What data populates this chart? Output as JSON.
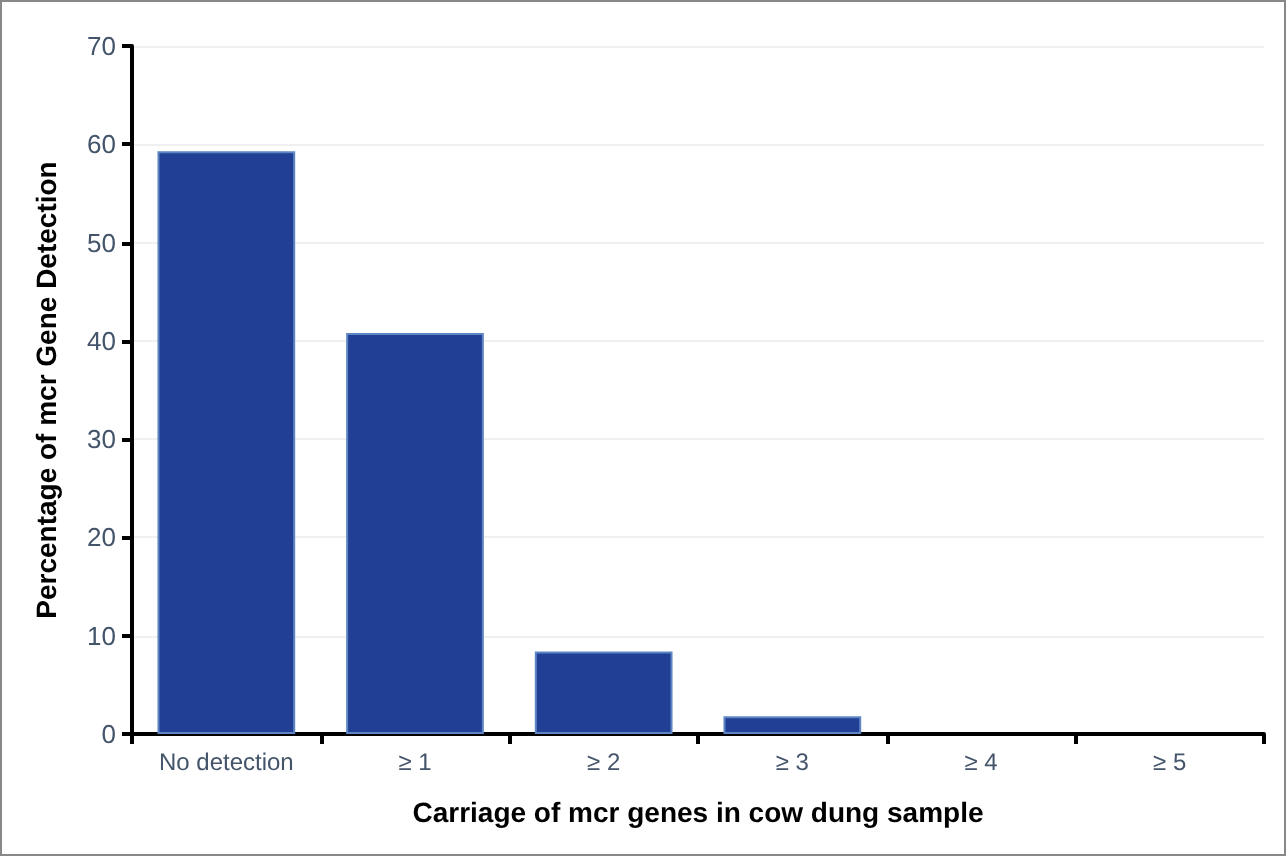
{
  "chart_data": {
    "type": "bar",
    "xlabel": "Carriage of mcr genes in cow dung sample",
    "ylabel": "Percentage of mcr Gene Detection",
    "categories": [
      "No detection",
      "≥ 1",
      "≥ 2",
      "≥ 3",
      "≥ 4",
      "≥ 5"
    ],
    "values": [
      59.3,
      40.8,
      8.4,
      1.8,
      0,
      0
    ],
    "color": "#213f94",
    "ylim": [
      0,
      70
    ],
    "yticks": [
      0,
      10,
      20,
      30,
      40,
      50,
      60,
      70
    ],
    "grid": "y"
  }
}
